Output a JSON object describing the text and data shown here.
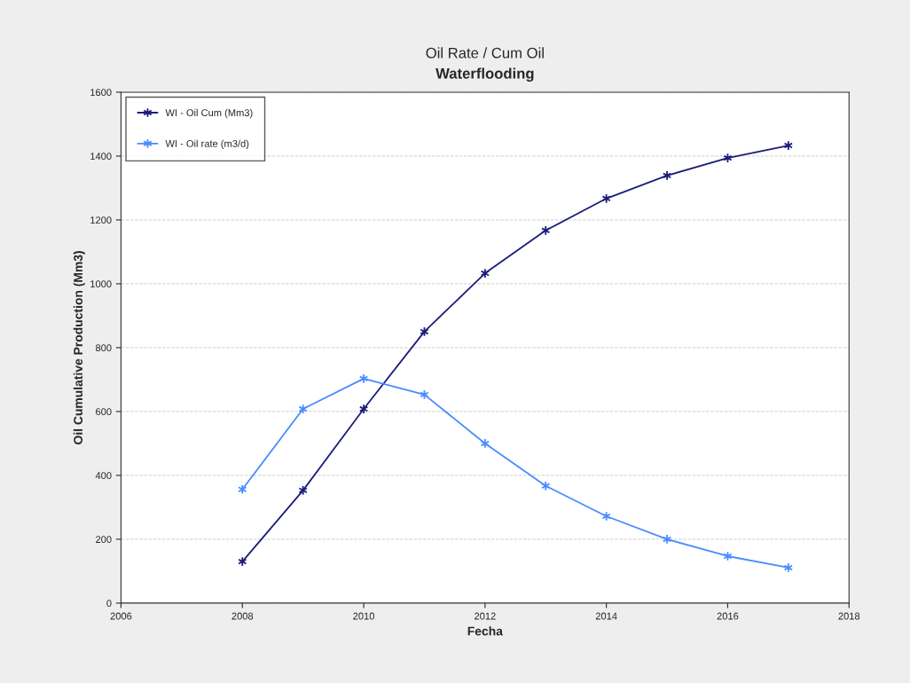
{
  "chart_data": {
    "type": "line",
    "title": "Oil Rate / Cum Oil",
    "subtitle": "Waterflooding",
    "xlabel": "Fecha",
    "ylabel": "Oil Cumulative Production (Mm3)",
    "x": [
      2008,
      2009,
      2010,
      2011,
      2012,
      2013,
      2014,
      2015,
      2016,
      2017
    ],
    "series": [
      {
        "name": "WI - Oil Cum (Mm3)",
        "color": "#1c1c7a",
        "values": [
          130,
          353,
          608,
          850,
          1033,
          1167,
          1267,
          1339,
          1394,
          1433
        ]
      },
      {
        "name": "WI - Oil rate (m3/d)",
        "color": "#4a8cff",
        "values": [
          356,
          608,
          703,
          653,
          500,
          367,
          272,
          200,
          147,
          111
        ]
      }
    ],
    "xlim": [
      2006,
      2018
    ],
    "xticks": [
      2006,
      2008,
      2010,
      2012,
      2014,
      2016,
      2018
    ],
    "ylim": [
      0,
      1600
    ],
    "yticks": [
      0,
      200,
      400,
      600,
      800,
      1000,
      1200,
      1400,
      1600
    ],
    "grid": "y",
    "legend": "top left",
    "marker": "cross",
    "line_style": "solid"
  }
}
